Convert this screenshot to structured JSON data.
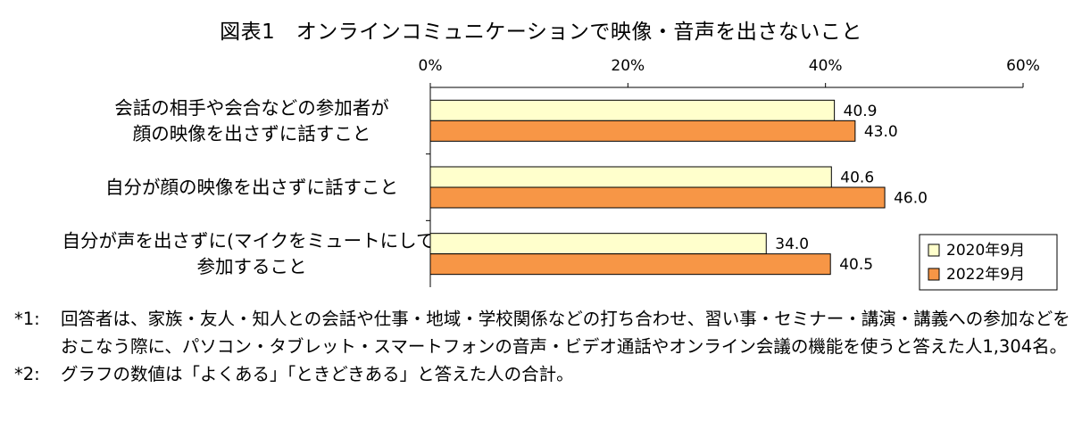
{
  "chart_data": {
    "type": "bar",
    "orientation": "horizontal",
    "title": "図表1　オンラインコミュニケーションで映像・音声を出さないこと",
    "x_ticks": [
      "0%",
      "20%",
      "40%",
      "60%"
    ],
    "xlim": [
      0,
      60
    ],
    "categories": [
      [
        "会話の相手や会合などの参加者が",
        "顔の映像を出さずに話すこと"
      ],
      [
        "自分が顔の映像を出さずに話すこと"
      ],
      [
        "自分が声を出さずに(マイクをミュートにして)",
        "参加すること"
      ]
    ],
    "series": [
      {
        "name": "2020年9月",
        "values": [
          40.9,
          40.6,
          34.0
        ],
        "labels": [
          "40.9",
          "40.6",
          "34.0"
        ],
        "color": "#ffffcc"
      },
      {
        "name": "2022年9月",
        "values": [
          43.0,
          46.0,
          40.5
        ],
        "labels": [
          "43.0",
          "46.0",
          "40.5"
        ],
        "color": "#f79646"
      }
    ],
    "legend_position": "bottom-right",
    "grid": false
  },
  "notes": [
    {
      "label": "*1:",
      "text": "回答者は、家族・友人・知人との会話や仕事・地域・学校関係などの打ち合わせ、習い事・セミナー・講演・講義への参加などをおこなう際に、パソコン・タブレット・スマートフォンの音声・ビデオ通話やオンライン会議の機能を使うと答えた人1,304名。"
    },
    {
      "label": "*2:",
      "text": "グラフの数値は「よくある」「ときどきある」と答えた人の合計。"
    }
  ]
}
